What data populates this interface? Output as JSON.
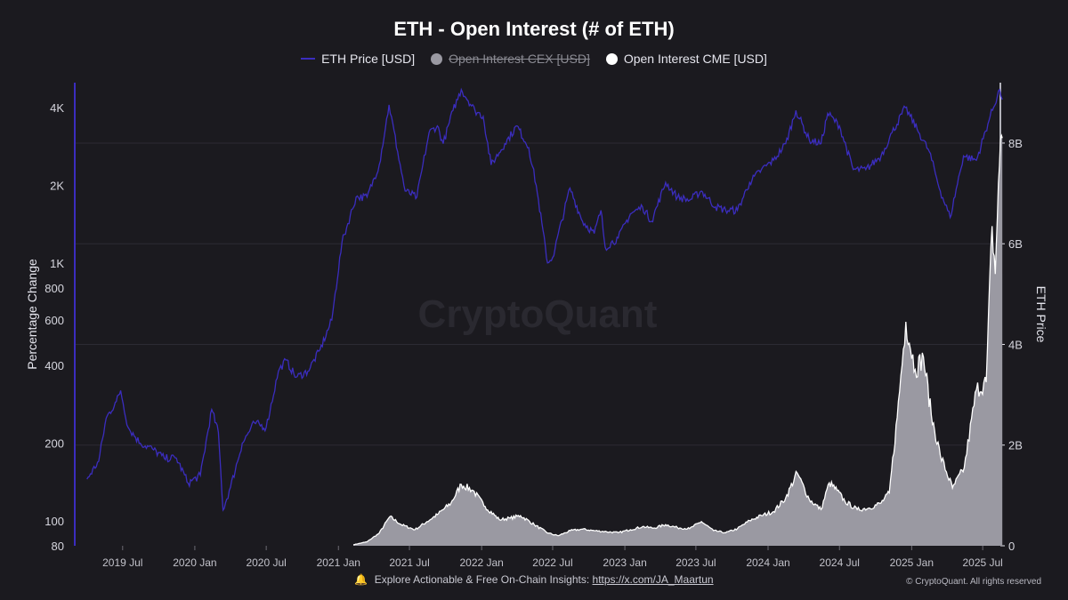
{
  "title": "ETH - Open Interest (# of ETH)",
  "legend": [
    {
      "label": "ETH Price [USD]",
      "color": "#3b2dbf",
      "marker": "line",
      "enabled": true
    },
    {
      "label": "Open Interest CEX [USD]",
      "color": "#9a99a2",
      "marker": "dot",
      "enabled": false
    },
    {
      "label": "Open Interest CME [USD]",
      "color": "#ffffff",
      "marker": "dot",
      "enabled": true
    }
  ],
  "watermark": "CryptoQuant",
  "footer": {
    "text": "Explore Actionable & Free On-Chain Insights:",
    "link": "https://x.com/JA_Maartun",
    "copyright": "© CryptoQuant. All rights reserved"
  },
  "chart_data": {
    "type": "line",
    "left_axis": {
      "title": "Percentage Change",
      "scale": "log",
      "ticks": [
        80,
        100,
        200,
        400,
        600,
        800,
        1000,
        2000,
        4000
      ],
      "tick_labels": [
        "80",
        "100",
        "200",
        "400",
        "600",
        "800",
        "1K",
        "2K",
        "4K"
      ],
      "range": [
        80,
        5000
      ]
    },
    "right_axis": {
      "title": "ETH Price",
      "scale": "linear",
      "ticks": [
        0,
        2000000000,
        4000000000,
        6000000000,
        8000000000
      ],
      "tick_labels": [
        "0",
        "2B",
        "4B",
        "6B",
        "8B"
      ],
      "range": [
        0,
        9200000000
      ]
    },
    "x_axis": {
      "ticks": [
        "2019 Jul",
        "2020 Jan",
        "2020 Jul",
        "2021 Jan",
        "2021 Jul",
        "2022 Jan",
        "2022 Jul",
        "2023 Jan",
        "2023 Jul",
        "2024 Jan",
        "2024 Jul",
        "2025 Jan",
        "2025 Jul"
      ],
      "range": [
        "2019-03-01",
        "2025-08-15"
      ]
    },
    "grid": true,
    "legend_position": "top-center",
    "series": [
      {
        "name": "ETH Price [USD]",
        "axis": "left",
        "color": "#3b2dbf",
        "style": "line",
        "points": [
          [
            "2019-04-01",
            145
          ],
          [
            "2019-05-01",
            170
          ],
          [
            "2019-05-20",
            250
          ],
          [
            "2019-06-15",
            290
          ],
          [
            "2019-06-26",
            320
          ],
          [
            "2019-07-15",
            230
          ],
          [
            "2019-08-15",
            200
          ],
          [
            "2019-09-15",
            190
          ],
          [
            "2019-10-15",
            175
          ],
          [
            "2019-11-15",
            175
          ],
          [
            "2019-12-15",
            140
          ],
          [
            "2020-01-15",
            150
          ],
          [
            "2020-02-13",
            270
          ],
          [
            "2020-03-01",
            220
          ],
          [
            "2020-03-13",
            110
          ],
          [
            "2020-04-01",
            135
          ],
          [
            "2020-05-01",
            200
          ],
          [
            "2020-06-01",
            240
          ],
          [
            "2020-07-01",
            230
          ],
          [
            "2020-08-01",
            380
          ],
          [
            "2020-08-20",
            420
          ],
          [
            "2020-09-15",
            360
          ],
          [
            "2020-10-15",
            380
          ],
          [
            "2020-11-15",
            460
          ],
          [
            "2020-12-15",
            600
          ],
          [
            "2021-01-10",
            1200
          ],
          [
            "2021-02-15",
            1800
          ],
          [
            "2021-03-15",
            1800
          ],
          [
            "2021-04-15",
            2400
          ],
          [
            "2021-05-10",
            4100
          ],
          [
            "2021-06-01",
            2700
          ],
          [
            "2021-06-20",
            1900
          ],
          [
            "2021-07-20",
            1800
          ],
          [
            "2021-08-20",
            3200
          ],
          [
            "2021-09-10",
            3400
          ],
          [
            "2021-09-25",
            2900
          ],
          [
            "2021-10-20",
            3900
          ],
          [
            "2021-11-10",
            4700
          ],
          [
            "2021-12-15",
            3900
          ],
          [
            "2022-01-05",
            3700
          ],
          [
            "2022-01-25",
            2400
          ],
          [
            "2022-03-01",
            2900
          ],
          [
            "2022-04-01",
            3400
          ],
          [
            "2022-05-01",
            2800
          ],
          [
            "2022-05-20",
            2000
          ],
          [
            "2022-06-18",
            1000
          ],
          [
            "2022-07-01",
            1050
          ],
          [
            "2022-08-14",
            1950
          ],
          [
            "2022-09-15",
            1450
          ],
          [
            "2022-10-15",
            1300
          ],
          [
            "2022-11-01",
            1600
          ],
          [
            "2022-11-12",
            1150
          ],
          [
            "2022-12-15",
            1250
          ],
          [
            "2023-01-15",
            1550
          ],
          [
            "2023-02-15",
            1650
          ],
          [
            "2023-03-10",
            1450
          ],
          [
            "2023-04-15",
            2050
          ],
          [
            "2023-05-15",
            1800
          ],
          [
            "2023-06-15",
            1750
          ],
          [
            "2023-07-15",
            1900
          ],
          [
            "2023-08-20",
            1650
          ],
          [
            "2023-09-15",
            1600
          ],
          [
            "2023-10-15",
            1600
          ],
          [
            "2023-11-15",
            2050
          ],
          [
            "2023-12-15",
            2300
          ],
          [
            "2024-01-15",
            2500
          ],
          [
            "2024-02-15",
            2900
          ],
          [
            "2024-03-12",
            3900
          ],
          [
            "2024-04-15",
            3000
          ],
          [
            "2024-05-15",
            2900
          ],
          [
            "2024-06-01",
            3800
          ],
          [
            "2024-07-01",
            3400
          ],
          [
            "2024-08-05",
            2300
          ],
          [
            "2024-09-06",
            2300
          ],
          [
            "2024-10-15",
            2600
          ],
          [
            "2024-11-12",
            3200
          ],
          [
            "2024-12-16",
            4000
          ],
          [
            "2025-01-15",
            3300
          ],
          [
            "2025-02-15",
            2700
          ],
          [
            "2025-03-15",
            1900
          ],
          [
            "2025-04-09",
            1500
          ],
          [
            "2025-05-13",
            2600
          ],
          [
            "2025-06-15",
            2500
          ],
          [
            "2025-07-20",
            3700
          ],
          [
            "2025-08-13",
            4700
          ],
          [
            "2025-08-20",
            4300
          ]
        ]
      },
      {
        "name": "Open Interest CME [USD]",
        "axis": "right",
        "color": "#ffffff",
        "fill": "#9a99a2",
        "style": "area",
        "points": [
          [
            "2021-02-08",
            20000000.0
          ],
          [
            "2021-03-15",
            80000000.0
          ],
          [
            "2021-04-15",
            250000000.0
          ],
          [
            "2021-05-12",
            580000000.0
          ],
          [
            "2021-06-10",
            420000000.0
          ],
          [
            "2021-07-15",
            320000000.0
          ],
          [
            "2021-08-15",
            480000000.0
          ],
          [
            "2021-09-10",
            620000000.0
          ],
          [
            "2021-10-15",
            850000000.0
          ],
          [
            "2021-11-10",
            1220000000.0
          ],
          [
            "2021-12-10",
            1100000000.0
          ],
          [
            "2022-01-10",
            780000000.0
          ],
          [
            "2022-02-15",
            520000000.0
          ],
          [
            "2022-03-15",
            550000000.0
          ],
          [
            "2022-04-10",
            600000000.0
          ],
          [
            "2022-05-15",
            420000000.0
          ],
          [
            "2022-06-20",
            250000000.0
          ],
          [
            "2022-07-15",
            200000000.0
          ],
          [
            "2022-08-15",
            300000000.0
          ],
          [
            "2022-09-15",
            330000000.0
          ],
          [
            "2022-10-15",
            300000000.0
          ],
          [
            "2022-11-15",
            280000000.0
          ],
          [
            "2022-12-15",
            260000000.0
          ],
          [
            "2023-01-15",
            320000000.0
          ],
          [
            "2023-02-15",
            380000000.0
          ],
          [
            "2023-03-15",
            350000000.0
          ],
          [
            "2023-04-15",
            420000000.0
          ],
          [
            "2023-05-15",
            360000000.0
          ],
          [
            "2023-06-15",
            340000000.0
          ],
          [
            "2023-07-15",
            480000000.0
          ],
          [
            "2023-08-15",
            300000000.0
          ],
          [
            "2023-09-15",
            260000000.0
          ],
          [
            "2023-10-15",
            340000000.0
          ],
          [
            "2023-11-15",
            500000000.0
          ],
          [
            "2023-12-15",
            600000000.0
          ],
          [
            "2024-01-15",
            680000000.0
          ],
          [
            "2024-02-15",
            950000000.0
          ],
          [
            "2024-03-15",
            1450000000.0
          ],
          [
            "2024-04-15",
            920000000.0
          ],
          [
            "2024-05-15",
            720000000.0
          ],
          [
            "2024-06-05",
            1250000000.0
          ],
          [
            "2024-06-25",
            1100000000.0
          ],
          [
            "2024-07-15",
            880000000.0
          ],
          [
            "2024-08-15",
            720000000.0
          ],
          [
            "2024-09-15",
            750000000.0
          ],
          [
            "2024-10-15",
            850000000.0
          ],
          [
            "2024-11-05",
            1050000000.0
          ],
          [
            "2024-11-25",
            2550000000.0
          ],
          [
            "2024-12-17",
            4450000000.0
          ],
          [
            "2025-01-10",
            3500000000.0
          ],
          [
            "2025-01-31",
            3750000000.0
          ],
          [
            "2025-02-20",
            2600000000.0
          ],
          [
            "2025-03-15",
            1800000000.0
          ],
          [
            "2025-04-15",
            1150000000.0
          ],
          [
            "2025-05-15",
            1550000000.0
          ],
          [
            "2025-06-15",
            3100000000.0
          ],
          [
            "2025-07-10",
            3250000000.0
          ],
          [
            "2025-07-25",
            6350000000.0
          ],
          [
            "2025-08-02",
            5400000000.0
          ],
          [
            "2025-08-10",
            7200000000.0
          ],
          [
            "2025-08-18",
            8150000000.0
          ],
          [
            "2025-08-20",
            8100000000.0
          ]
        ]
      }
    ]
  }
}
